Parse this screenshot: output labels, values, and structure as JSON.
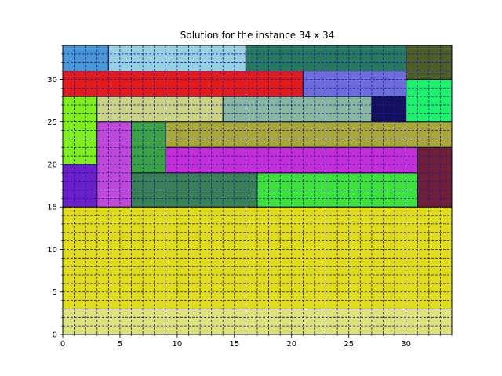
{
  "chart_data": {
    "type": "heatmap",
    "title": "Solution for the instance 34 x 34",
    "xlabel": "",
    "ylabel": "",
    "xlim": [
      0,
      34
    ],
    "ylim": [
      0,
      34
    ],
    "x_ticks": [
      0,
      5,
      10,
      15,
      20,
      25,
      30
    ],
    "y_ticks": [
      0,
      5,
      10,
      15,
      20,
      25,
      30
    ],
    "grid": true,
    "grid_style": "dashed",
    "grid_color": "#1a1aa0",
    "rectangles": [
      {
        "x": 0,
        "y": 0,
        "w": 34,
        "h": 3,
        "color": "#dde27a"
      },
      {
        "x": 0,
        "y": 3,
        "w": 34,
        "h": 12,
        "color": "#e0dc1a"
      },
      {
        "x": 0,
        "y": 15,
        "w": 3,
        "h": 5,
        "color": "#6a1fc8"
      },
      {
        "x": 0,
        "y": 20,
        "w": 3,
        "h": 8,
        "color": "#80f01a"
      },
      {
        "x": 3,
        "y": 15,
        "w": 3,
        "h": 10,
        "color": "#c048d8"
      },
      {
        "x": 6,
        "y": 15,
        "w": 11,
        "h": 4,
        "color": "#3a8055"
      },
      {
        "x": 6,
        "y": 19,
        "w": 3,
        "h": 6,
        "color": "#3aa242"
      },
      {
        "x": 17,
        "y": 15,
        "w": 14,
        "h": 4,
        "color": "#3ae23a"
      },
      {
        "x": 31,
        "y": 15,
        "w": 3,
        "h": 7,
        "color": "#6e2038"
      },
      {
        "x": 9,
        "y": 19,
        "w": 22,
        "h": 3,
        "color": "#c42ed6"
      },
      {
        "x": 9,
        "y": 22,
        "w": 25,
        "h": 3,
        "color": "#a8a838"
      },
      {
        "x": 3,
        "y": 25,
        "w": 11,
        "h": 3,
        "color": "#cdd385"
      },
      {
        "x": 14,
        "y": 25,
        "w": 13,
        "h": 3,
        "color": "#8ab89e"
      },
      {
        "x": 27,
        "y": 25,
        "w": 3,
        "h": 3,
        "color": "#14105e"
      },
      {
        "x": 30,
        "y": 25,
        "w": 4,
        "h": 5,
        "color": "#1ef26a"
      },
      {
        "x": 0,
        "y": 28,
        "w": 21,
        "h": 3,
        "color": "#e21c1c"
      },
      {
        "x": 21,
        "y": 28,
        "w": 9,
        "h": 3,
        "color": "#6c6cda"
      },
      {
        "x": 30,
        "y": 30,
        "w": 4,
        "h": 4,
        "color": "#4e5e28"
      },
      {
        "x": 0,
        "y": 31,
        "w": 4,
        "h": 3,
        "color": "#4896d2"
      },
      {
        "x": 4,
        "y": 31,
        "w": 12,
        "h": 3,
        "color": "#98d0e2"
      },
      {
        "x": 16,
        "y": 31,
        "w": 14,
        "h": 3,
        "color": "#26785e"
      }
    ]
  }
}
